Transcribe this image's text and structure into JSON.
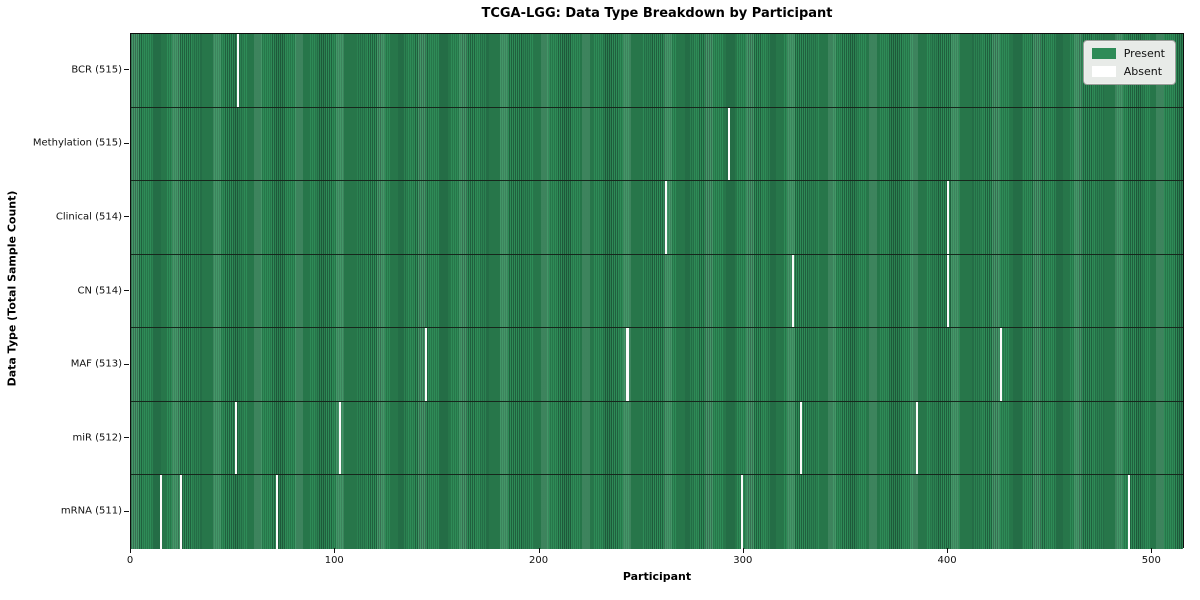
{
  "title": "TCGA-LGG: Data Type Breakdown by Participant",
  "xlabel": "Participant",
  "ylabel": "Data Type (Total Sample Count)",
  "colors": {
    "present": "#2e8b57",
    "present_edge": "#20603e",
    "absent": "#ffffff",
    "axis": "#111111",
    "legend_background": "#e8ebe8"
  },
  "chart_data": {
    "type": "heatmap",
    "title": "TCGA-LGG: Data Type Breakdown by Participant",
    "xlabel": "Participant",
    "ylabel": "Data Type (Total Sample Count)",
    "x_axis": {
      "ticks": [
        0,
        100,
        200,
        300,
        400,
        500
      ],
      "range": [
        0,
        516
      ]
    },
    "n_participants": 516,
    "grid": false,
    "legend_position": "upper right",
    "legend": [
      {
        "label": "Present",
        "color": "#2e8b57"
      },
      {
        "label": "Absent",
        "color": "#ffffff"
      }
    ],
    "rows": [
      {
        "label": "BCR (515)",
        "data_type": "BCR",
        "sample_count": 515,
        "absent_participants": [
          52
        ]
      },
      {
        "label": "Methylation (515)",
        "data_type": "Methylation",
        "sample_count": 515,
        "absent_participants": [
          293
        ]
      },
      {
        "label": "Clinical (514)",
        "data_type": "Clinical",
        "sample_count": 514,
        "absent_participants": [
          262,
          400
        ]
      },
      {
        "label": "CN (514)",
        "data_type": "CN",
        "sample_count": 514,
        "absent_participants": [
          324,
          400
        ]
      },
      {
        "label": "MAF (513)",
        "data_type": "MAF",
        "sample_count": 513,
        "absent_participants": [
          144,
          243,
          426
        ]
      },
      {
        "label": "miR (512)",
        "data_type": "miR",
        "sample_count": 512,
        "absent_participants": [
          51,
          102,
          328,
          385
        ]
      },
      {
        "label": "mRNA (511)",
        "data_type": "mRNA",
        "sample_count": 511,
        "absent_participants": [
          14,
          24,
          71,
          299,
          489
        ]
      }
    ]
  }
}
